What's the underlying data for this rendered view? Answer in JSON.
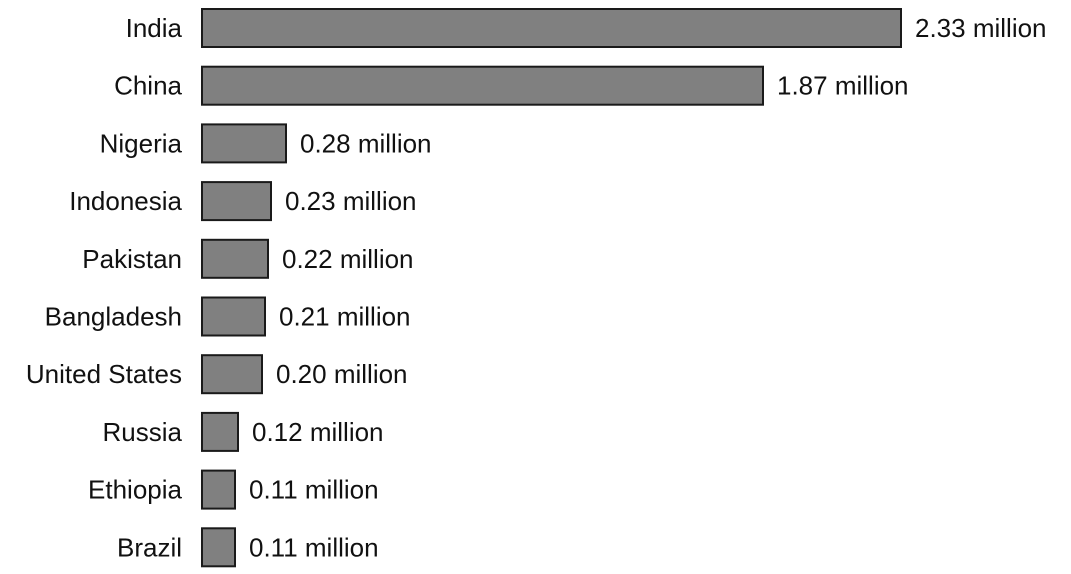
{
  "chart_data": {
    "type": "bar",
    "orientation": "horizontal",
    "categories": [
      "India",
      "China",
      "Nigeria",
      "Indonesia",
      "Pakistan",
      "Bangladesh",
      "United States",
      "Russia",
      "Ethiopia",
      "Brazil"
    ],
    "values": [
      2.33,
      1.87,
      0.28,
      0.23,
      0.22,
      0.21,
      0.2,
      0.12,
      0.11,
      0.11
    ],
    "value_labels": [
      "2.33 million",
      "1.87 million",
      "0.28 million",
      "0.23 million",
      "0.22 million",
      "0.21 million",
      "0.20 million",
      "0.12 million",
      "0.11 million",
      "0.11 million"
    ],
    "xlim": [
      0,
      2.33
    ],
    "grid": false,
    "legend": "none",
    "bar_color": "#808080",
    "bar_edge_color": "#1a1a1a"
  }
}
